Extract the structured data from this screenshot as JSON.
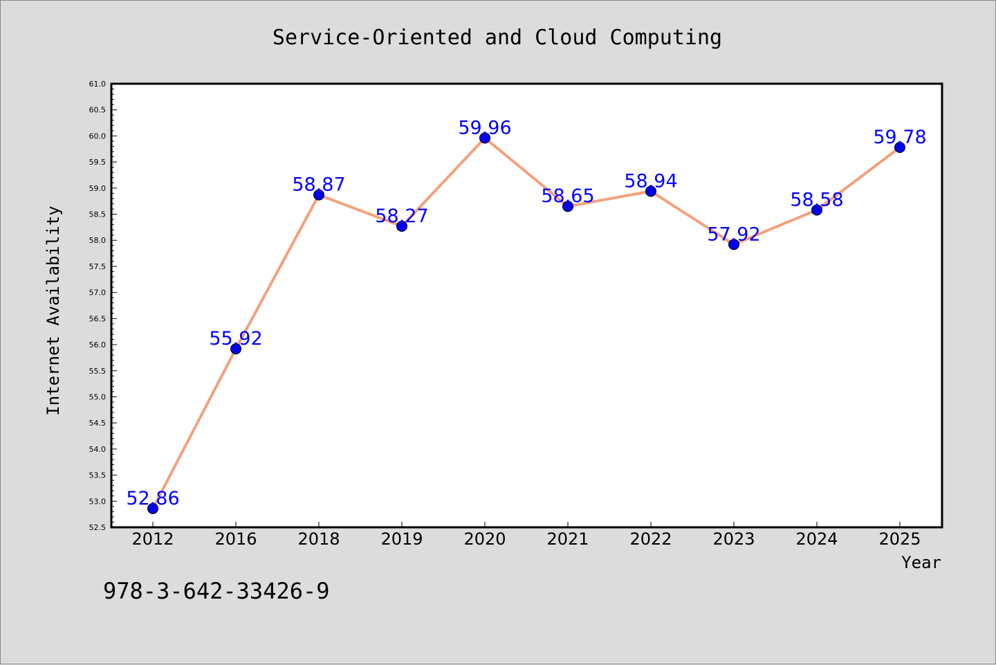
{
  "chart_data": {
    "type": "line",
    "title": "Service-Oriented and Cloud Computing",
    "xlabel": "Year",
    "ylabel": "Internet Availability",
    "categories": [
      "2012",
      "2016",
      "2018",
      "2019",
      "2020",
      "2021",
      "2022",
      "2023",
      "2024",
      "2025"
    ],
    "series": [
      {
        "values": [
          52.86,
          55.92,
          58.87,
          58.27,
          59.96,
          58.65,
          58.94,
          57.92,
          58.58,
          59.78
        ]
      }
    ],
    "data_labels": [
      "52.86",
      "55.92",
      "58.87",
      "58.27",
      "59.96",
      "58.65",
      "58.94",
      "57.92",
      "58.58",
      "59.78"
    ],
    "ylim": [
      52.5,
      61.0
    ],
    "ytick_step": 0.5,
    "grid": false,
    "line_color": "#f4a07c",
    "marker_color": "#0000ee",
    "label_color": "#0000ff",
    "background_color": "#dcdcdc",
    "plot_background_color": "#ffffff"
  },
  "footnote": "978-3-642-33426-9"
}
